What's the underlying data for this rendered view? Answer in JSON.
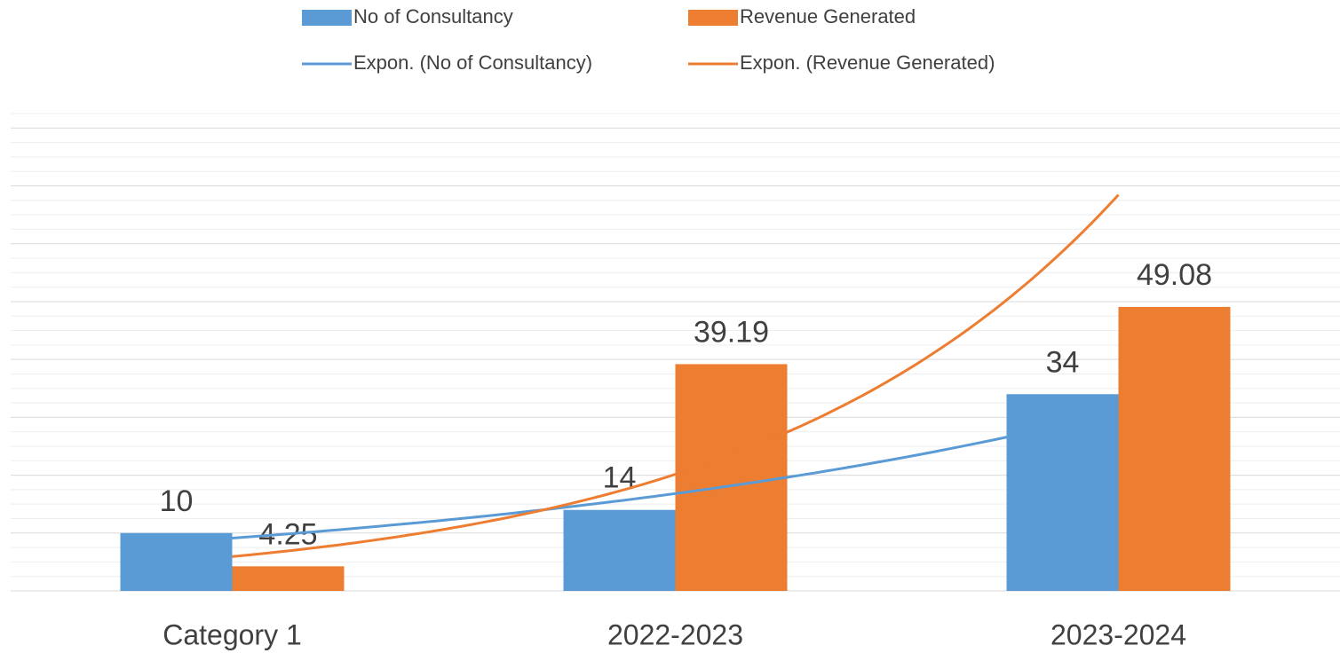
{
  "chart_data": {
    "type": "bar",
    "categories": [
      "Category 1",
      "2022-2023",
      "2023-2024"
    ],
    "series": [
      {
        "name": "No of Consultancy",
        "color": "#5b9bd5",
        "values": [
          10,
          14,
          34
        ],
        "trendline": "exponential",
        "trendline_name": "Expon. (No of Consultancy)"
      },
      {
        "name": "Revenue Generated",
        "color": "#ed7d31",
        "values": [
          4.25,
          39.19,
          49.08
        ],
        "trendline": "exponential",
        "trendline_name": "Expon. (Revenue Generated)"
      }
    ],
    "ylim": [
      0,
      82.5
    ],
    "yticks": [
      0,
      10,
      20,
      30,
      40,
      50,
      60,
      70,
      80
    ],
    "minor_yticks": [
      2.5,
      5,
      7.5,
      12.5,
      15,
      17.5,
      22.5,
      25,
      27.5,
      32.5,
      35,
      37.5,
      42.5,
      45,
      47.5,
      52.5,
      55,
      57.5,
      62.5,
      65,
      67.5,
      72.5,
      75,
      77.5,
      82.5
    ],
    "grid": true,
    "legend": "top"
  }
}
